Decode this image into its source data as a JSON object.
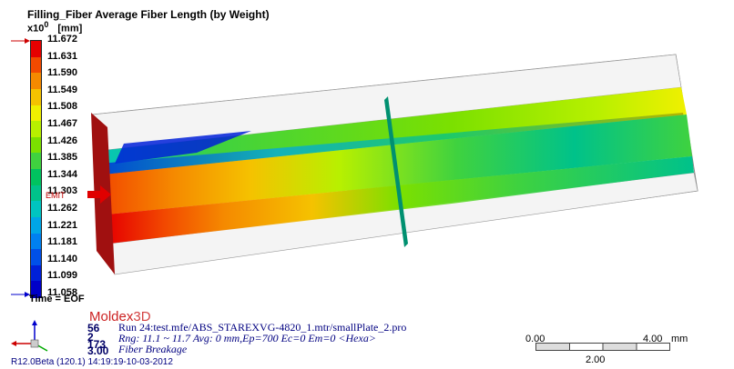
{
  "title": "Filling_Fiber Average Fiber Length (by Weight)",
  "unit": {
    "prefix": "x10",
    "exponent": "0",
    "label": "[mm]"
  },
  "legend": {
    "ticks": [
      "11.672",
      "11.631",
      "11.590",
      "11.549",
      "11.508",
      "11.467",
      "11.426",
      "11.385",
      "11.344",
      "11.303",
      "11.262",
      "11.221",
      "11.181",
      "11.140",
      "11.099",
      "11.058"
    ],
    "colors": [
      "#e60000",
      "#f24a00",
      "#f58a00",
      "#f5c200",
      "#f0f000",
      "#b8f000",
      "#7be000",
      "#3fd23f",
      "#00c25f",
      "#00c28a",
      "#00c4c0",
      "#00a6e6",
      "#0080f0",
      "#0050e8",
      "#0020d8",
      "#0000c8"
    ]
  },
  "time_label": "Time = EOF",
  "emit_label": "EMIT",
  "logo": {
    "brand": "Moldex",
    "suffix": "3D"
  },
  "info": {
    "numbers": [
      "56",
      "2",
      "173",
      "3.00"
    ],
    "run_line": "Run 24:test.mfe/ABS_STAREXVG-4820_1.mtr/smallPlate_2.pro",
    "range_line": "Rng: 11.1 ~ 11.7  Avg: 0 mm,Ep=700 Ec=0 Em=0  <Hexa>",
    "analysis_line": "Fiber Breakage"
  },
  "version": "R12.0Beta (120.1) 14:19:19-10-03-2012",
  "scale": {
    "left": "0.00",
    "right": "4.00",
    "unit": "mm",
    "mid": "2.00"
  }
}
